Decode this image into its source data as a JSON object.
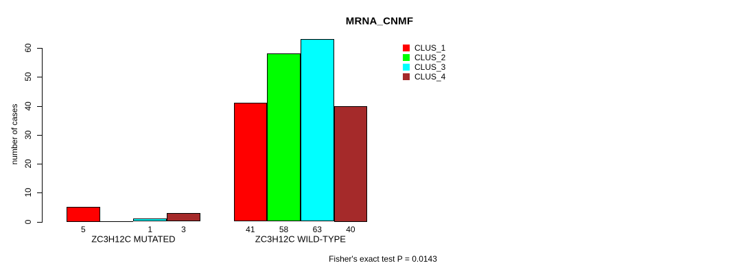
{
  "chart_data": {
    "type": "bar",
    "title": "MRNA_CNMF",
    "xlabel": "",
    "ylabel": "number of cases",
    "ylim": [
      0,
      60
    ],
    "yticks": [
      0,
      10,
      20,
      30,
      40,
      50,
      60
    ],
    "grid": false,
    "legend_position": "top-right",
    "series_names": [
      "CLUS_1",
      "CLUS_2",
      "CLUS_3",
      "CLUS_4"
    ],
    "colors": [
      "#FF0000",
      "#00FF00",
      "#00FFFF",
      "#A52A2A"
    ],
    "legend": [
      {
        "label": "CLUS_1",
        "color": "#FF0000"
      },
      {
        "label": "CLUS_2",
        "color": "#00FF00"
      },
      {
        "label": "CLUS_3",
        "color": "#00FFFF"
      },
      {
        "label": "CLUS_4",
        "color": "#A52A2A"
      }
    ],
    "groups": [
      {
        "label": "ZC3H12C MUTATED",
        "values": [
          5,
          0,
          1,
          3
        ],
        "value_labels": [
          "5",
          "",
          "1",
          "3"
        ]
      },
      {
        "label": "ZC3H12C WILD-TYPE",
        "values": [
          41,
          58,
          63,
          40
        ],
        "value_labels": [
          "41",
          "58",
          "63",
          "40"
        ]
      }
    ],
    "footer": "Fisher's exact test P = 0.0143"
  }
}
